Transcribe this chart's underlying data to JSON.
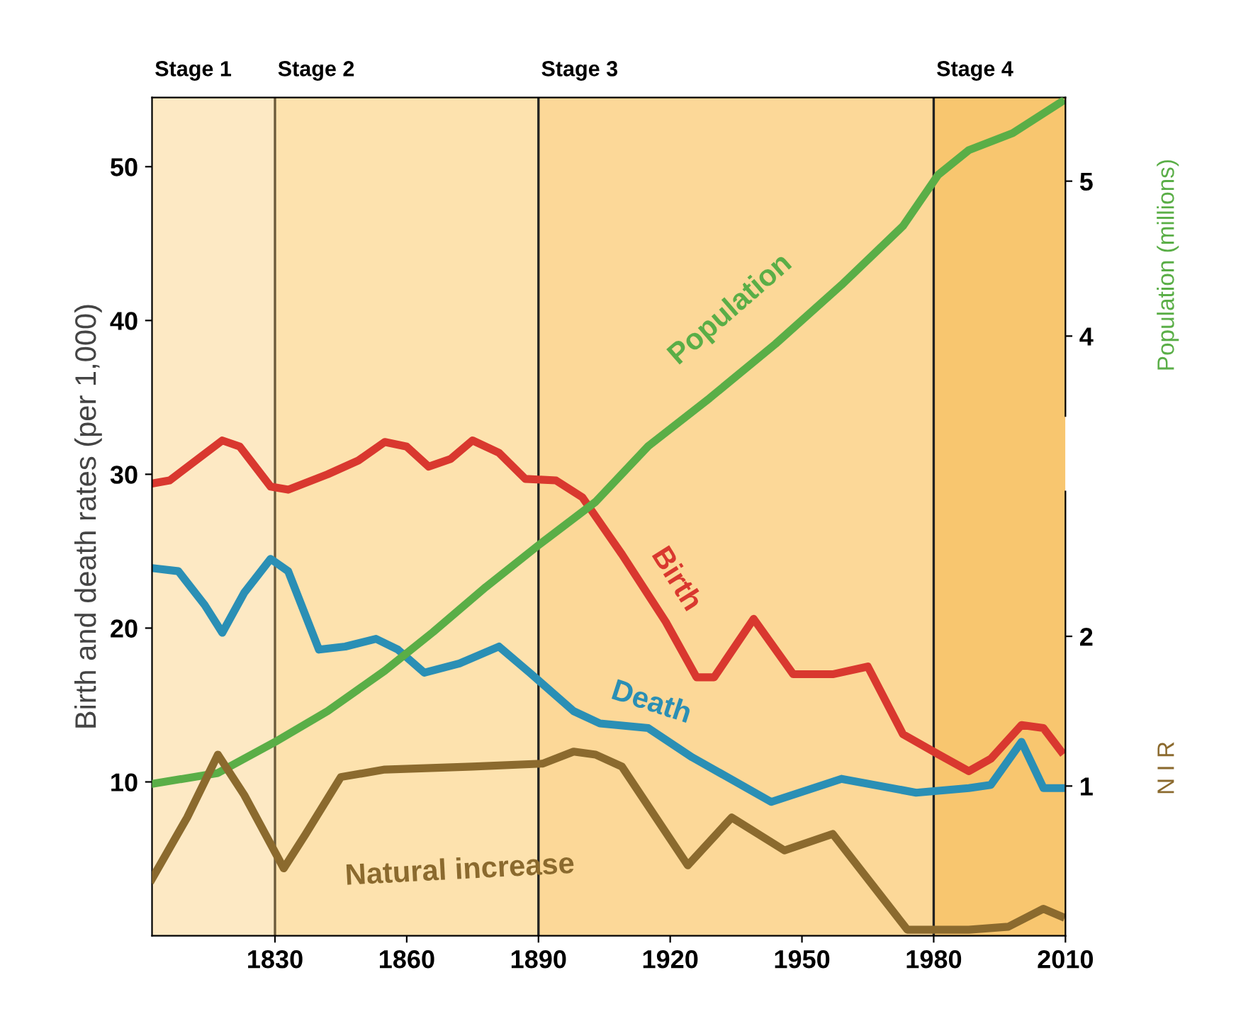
{
  "chart_data": {
    "type": "line",
    "ylabel": "Birth and death rates (per 1,000)",
    "y2label": "Population (millions)",
    "y3label": "N I R",
    "xlim": [
      1802,
      2010
    ],
    "xticks": [
      1830,
      1860,
      1890,
      1920,
      1950,
      1980,
      2010
    ],
    "ylim": [
      0,
      54.5
    ],
    "yticks": [
      10,
      20,
      30,
      40,
      50
    ],
    "y2lim": [
      0.13,
      5.54
    ],
    "y2ticks": [
      4,
      5
    ],
    "y3lim": [
      0,
      5.6
    ],
    "y3ticks": [
      1,
      2
    ],
    "grid": false,
    "legend": false,
    "bands": [
      {
        "axis": "x",
        "from": 1802,
        "to": 1830,
        "label": "Stage 1",
        "color": "#fde9c4"
      },
      {
        "axis": "x",
        "from": 1830,
        "to": 1890,
        "label": "Stage 2",
        "color": "#fde2ae"
      },
      {
        "axis": "x",
        "from": 1890,
        "to": 1980,
        "label": "Stage 3",
        "color": "#fcd898"
      },
      {
        "axis": "x",
        "from": 1980,
        "to": 2010,
        "label": "Stage 4",
        "color": "#f8c66f"
      }
    ],
    "ref_lines": [
      {
        "axis": "x",
        "value": 1830,
        "color": "#6b5a3a"
      },
      {
        "axis": "x",
        "value": 1890,
        "color": "#222222"
      },
      {
        "axis": "x",
        "value": 1980,
        "color": "#222222"
      }
    ],
    "series": [
      {
        "name": "Birth",
        "color": "#d9382f",
        "x": [
          1802,
          1806,
          1818,
          1822,
          1829,
          1833,
          1842,
          1849,
          1855,
          1860,
          1865,
          1870,
          1875,
          1881,
          1887,
          1894,
          1900,
          1909,
          1919,
          1926,
          1930,
          1939,
          1948,
          1957,
          1965,
          1973,
          1981,
          1988,
          1993,
          2000,
          2005,
          2009
        ],
        "values": [
          29.4,
          29.6,
          32.2,
          31.8,
          29.2,
          29,
          30,
          30.9,
          32.1,
          31.8,
          30.5,
          31,
          32.2,
          31.4,
          29.7,
          29.6,
          28.5,
          24.8,
          20.4,
          16.8,
          16.8,
          20.6,
          17,
          17,
          17.5,
          13.1,
          11.8,
          10.7,
          11.5,
          13.7,
          13.5,
          12
        ]
      },
      {
        "name": "Death",
        "color": "#2a8fb5",
        "x": [
          1802,
          1808,
          1814,
          1818,
          1823,
          1829,
          1833,
          1840,
          1846,
          1853,
          1858,
          1864,
          1872,
          1881,
          1888,
          1898,
          1904,
          1915,
          1925,
          1943,
          1959,
          1976,
          1988,
          1993,
          2000,
          2005,
          2009
        ],
        "values": [
          23.9,
          23.7,
          21.5,
          19.7,
          22.3,
          24.5,
          23.7,
          18.6,
          18.8,
          19.3,
          18.6,
          17.1,
          17.7,
          18.8,
          17.1,
          14.6,
          13.8,
          13.5,
          11.6,
          8.7,
          10.2,
          9.3,
          9.6,
          9.8,
          12.6,
          9.6,
          9.6
        ]
      },
      {
        "name": "Population",
        "color": "#5aae47",
        "axis": "y2",
        "x": [
          1802,
          1817,
          1830,
          1842,
          1855,
          1866,
          1878,
          1890,
          1903,
          1915,
          1929,
          1944,
          1959,
          1973,
          1981,
          1988,
          1998,
          2009
        ],
        "values": [
          1.11,
          1.18,
          1.38,
          1.58,
          1.84,
          2.09,
          2.38,
          2.65,
          2.93,
          3.29,
          3.6,
          3.95,
          4.33,
          4.71,
          5.04,
          5.2,
          5.31,
          5.51
        ]
      },
      {
        "name": "Natural increase",
        "color": "#8b6a2e",
        "axis": "y3",
        "x": [
          1802,
          1810,
          1817,
          1823,
          1832,
          1837,
          1845,
          1855,
          1875,
          1891,
          1898,
          1903,
          1909,
          1924,
          1934,
          1946,
          1957,
          1974,
          1988,
          1997,
          2005,
          2009
        ],
        "values": [
          0.38,
          0.79,
          1.21,
          0.94,
          0.45,
          0.68,
          1.06,
          1.11,
          1.13,
          1.15,
          1.23,
          1.21,
          1.13,
          0.47,
          0.79,
          0.57,
          0.68,
          0.04,
          0.04,
          0.06,
          0.18,
          0.13
        ]
      }
    ]
  }
}
